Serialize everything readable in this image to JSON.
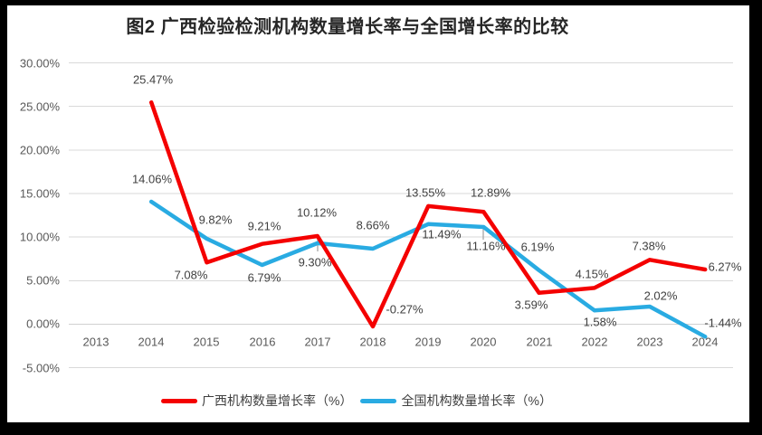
{
  "chart_data": {
    "type": "line",
    "title": "图2 广西检验检测机构数量增长率与全国增长率的比较",
    "categories": [
      "2013",
      "2014",
      "2015",
      "2016",
      "2017",
      "2018",
      "2019",
      "2020",
      "2021",
      "2022",
      "2023",
      "2024"
    ],
    "series": [
      {
        "name": "广西机构数量增长率（%）",
        "color": "#F40000",
        "values": [
          null,
          25.47,
          7.08,
          9.21,
          10.12,
          -0.27,
          13.55,
          12.89,
          3.59,
          4.15,
          7.38,
          6.27
        ],
        "labels": [
          "",
          "25.47%",
          "7.08%",
          "9.21%",
          "10.12%",
          "-0.27%",
          "13.55%",
          "12.89%",
          "3.59%",
          "4.15%",
          "7.38%",
          "6.27%"
        ]
      },
      {
        "name": "全国机构数量增长率（%）",
        "color": "#29ABE2",
        "values": [
          null,
          14.06,
          9.82,
          6.79,
          9.3,
          8.66,
          11.49,
          11.16,
          6.19,
          1.58,
          2.02,
          -1.44
        ],
        "labels": [
          "",
          "14.06%",
          "9.82%",
          "6.79%",
          "9.30%",
          "8.66%",
          "11.49%",
          "11.16%",
          "6.19%",
          "1.58%",
          "2.02%",
          "-1.44%"
        ]
      }
    ],
    "y_ticks": [
      "30.00%",
      "25.00%",
      "20.00%",
      "15.00%",
      "10.00%",
      "5.00%",
      "0.00%",
      "-5.00%"
    ],
    "ylim": [
      -5,
      30
    ],
    "grid": true,
    "legend_position": "bottom",
    "gridline_color": "#D9D9D9",
    "tick_label_color": "#595959",
    "data_label_color": "#404040"
  }
}
